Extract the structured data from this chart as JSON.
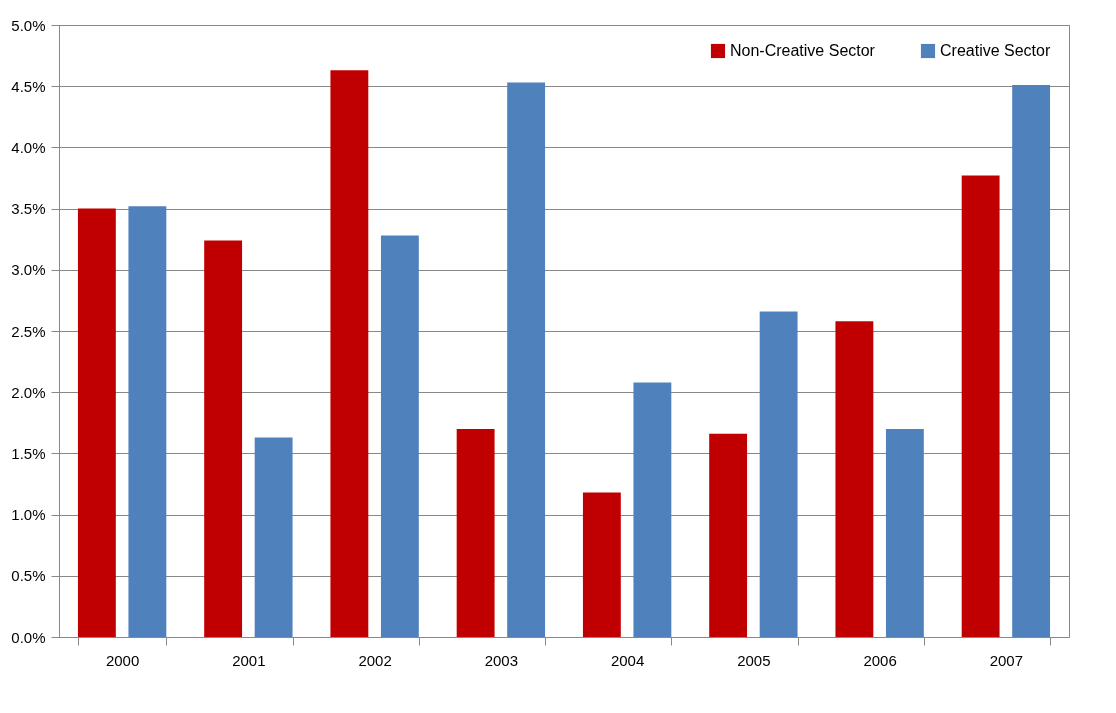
{
  "chart_data": {
    "type": "bar",
    "categories": [
      "2000",
      "2001",
      "2002",
      "2003",
      "2004",
      "2005",
      "2006",
      "2007"
    ],
    "series": [
      {
        "name": "Non-Creative  Sector",
        "color": "#c00000",
        "values": [
          3.5,
          3.24,
          4.63,
          1.7,
          1.18,
          1.66,
          2.58,
          3.77
        ]
      },
      {
        "name": "Creative Sector",
        "color": "#4f81bd",
        "values": [
          3.52,
          1.63,
          3.28,
          4.53,
          2.08,
          2.66,
          1.7,
          4.51
        ]
      }
    ],
    "ylim": [
      0,
      5
    ],
    "yticks": [
      {
        "value": 0,
        "label": "0.0%"
      },
      {
        "value": 0.5,
        "label": "0.5%"
      },
      {
        "value": 1,
        "label": "1.0%"
      },
      {
        "value": 1.5,
        "label": "1.5%"
      },
      {
        "value": 2,
        "label": "2.0%"
      },
      {
        "value": 2.5,
        "label": "2.5%"
      },
      {
        "value": 3,
        "label": "3.0%"
      },
      {
        "value": 3.5,
        "label": "3.5%"
      },
      {
        "value": 4,
        "label": "4.0%"
      },
      {
        "value": 4.5,
        "label": "4.5%"
      },
      {
        "value": 5,
        "label": "5.0%"
      }
    ],
    "grid": "y",
    "legend": "top right"
  }
}
